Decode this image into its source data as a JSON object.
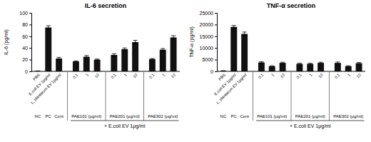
{
  "chart_data": [
    {
      "type": "bar",
      "title": "IL-6 secretion",
      "y_label": "IL-6 (pg/ml)",
      "x_label": "+ E.coli EV 1μg/ml",
      "categories": [
        [
          "NC",
          "PBS"
        ],
        [
          "PC",
          "E.coli EV 1μg/ml"
        ],
        [
          "Cont",
          "L. plantarum EV 1μg/ml"
        ],
        [
          "PAE101 (μg/ml)",
          "0.1"
        ],
        [
          "PAE101 (μg/ml)",
          "1"
        ],
        [
          "PAE101 (μg/ml)",
          "10"
        ],
        [
          "PAE201 (μg/ml)",
          "0.1"
        ],
        [
          "PAE201 (μg/ml)",
          "1"
        ],
        [
          "PAE201 (μg/ml)",
          "10"
        ],
        [
          "PAE302 (μg/ml)",
          "0.1"
        ],
        [
          "PAE302 (μg/ml)",
          "1"
        ],
        [
          "PAE302 (μg/ml)",
          "10"
        ]
      ],
      "values": [
        0.5,
        75,
        22,
        17,
        25,
        20,
        28,
        38,
        50,
        21,
        37,
        58
      ],
      "errors": [
        0.3,
        3,
        2,
        1,
        2,
        1,
        2,
        2,
        3,
        1,
        2,
        3
      ],
      "color": "#111111",
      "ylim": [
        0,
        100
      ],
      "yticks": [
        0,
        20,
        40,
        60,
        80,
        100
      ],
      "grid": false
    },
    {
      "type": "bar",
      "title": "TNF-α secretion",
      "y_label": "TNF-α (pg/ml)",
      "x_label": "+ E.coli EV 1μg/ml",
      "categories": [
        [
          "NC",
          "PBS"
        ],
        [
          "PC",
          "E.coli EV 1μg/ml"
        ],
        [
          "Cont",
          "L. plantarum EV 1μg/ml"
        ],
        [
          "PAE101 (μg/ml)",
          "0.1"
        ],
        [
          "PAE101 (μg/ml)",
          "1"
        ],
        [
          "PAE101 (μg/ml)",
          "10"
        ],
        [
          "PAE201 (μg/ml)",
          "0.1"
        ],
        [
          "PAE201 (μg/ml)",
          "1"
        ],
        [
          "PAE201 (μg/ml)",
          "10"
        ],
        [
          "PAE302 (μg/ml)",
          "0.1"
        ],
        [
          "PAE302 (μg/ml)",
          "1"
        ],
        [
          "PAE302 (μg/ml)",
          "10"
        ]
      ],
      "values": [
        200,
        19000,
        16000,
        3800,
        2200,
        3600,
        3200,
        3200,
        3600,
        3600,
        2200,
        3500
      ],
      "errors": [
        100,
        600,
        800,
        300,
        200,
        300,
        300,
        300,
        300,
        400,
        200,
        300
      ],
      "color": "#111111",
      "ylim": [
        0,
        25000
      ],
      "yticks": [
        0,
        5000,
        10000,
        15000,
        20000,
        25000
      ],
      "grid": false
    }
  ]
}
